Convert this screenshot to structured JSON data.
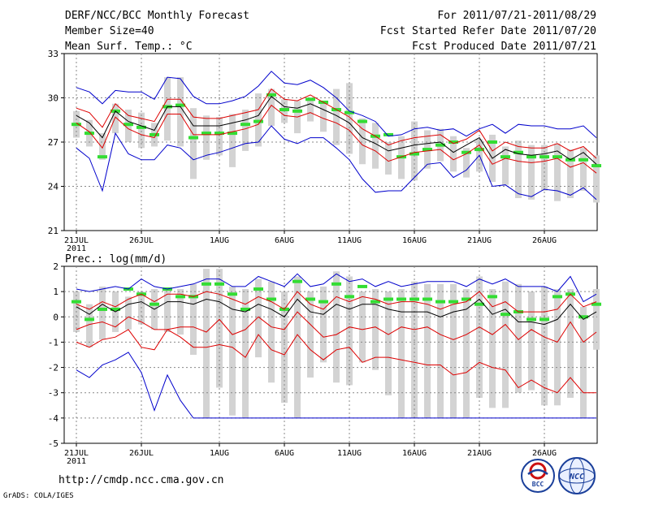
{
  "header": {
    "left": [
      "DERF/NCC/BCC Monthly Forecast",
      "Member Size=40",
      "Mean Surf. Temp.: °C"
    ],
    "right": [
      "For 2011/07/21-2011/08/29",
      "Fcst Started Refer Date 2011/07/20",
      "Fcst Produced Date 2011/07/21"
    ]
  },
  "footer": {
    "url": "http://cmdp.ncc.cma.gov.cn",
    "credit": "GrADS: COLA/IGES",
    "logo_left_text": "BCC",
    "logo_right_text": "NCC"
  },
  "colors": {
    "box": "#d3d3d3",
    "median": "#33dd33",
    "mean": "#000000",
    "spread": "#dd0000",
    "extreme": "#0000cc",
    "grid": "#888888"
  },
  "chart_data": [
    {
      "type": "line",
      "title": "Mean Surf. Temp.: °C",
      "x_tick_labels": [
        "21JUL",
        "26JUL",
        "1AUG",
        "6AUG",
        "11AUG",
        "16AUG",
        "21AUG",
        "26AUG"
      ],
      "x_year_label": "2011",
      "x_tick_days": [
        0,
        5,
        11,
        16,
        21,
        26,
        31,
        36
      ],
      "ylim": [
        21,
        33
      ],
      "y_ticks": [
        21,
        24,
        27,
        30,
        33
      ],
      "series": [
        {
          "name": "max",
          "values": [
            30.7,
            30.4,
            29.6,
            30.5,
            30.4,
            30.4,
            29.9,
            31.4,
            31.3,
            30.1,
            29.6,
            29.6,
            29.8,
            30.1,
            30.8,
            31.8,
            31.0,
            30.9,
            31.2,
            30.7,
            30.0,
            29.1,
            28.8,
            28.4,
            27.4,
            27.5,
            27.9,
            28.0,
            27.8,
            27.9,
            27.4,
            27.9,
            28.2,
            27.6,
            28.2,
            28.1,
            28.1,
            27.9,
            27.9,
            28.1,
            27.3
          ]
        },
        {
          "name": "upper",
          "values": [
            29.3,
            29.0,
            28.0,
            29.6,
            28.8,
            28.6,
            28.4,
            29.9,
            29.9,
            28.7,
            28.6,
            28.6,
            28.8,
            29.0,
            29.2,
            30.6,
            29.9,
            29.8,
            30.2,
            29.7,
            29.2,
            28.7,
            27.9,
            27.4,
            26.8,
            27.1,
            27.3,
            27.4,
            27.5,
            26.9,
            27.2,
            27.8,
            26.4,
            27.0,
            26.7,
            26.6,
            26.6,
            26.9,
            26.4,
            26.7,
            25.9
          ]
        },
        {
          "name": "mean",
          "values": [
            28.8,
            28.3,
            27.3,
            29.1,
            28.4,
            28.1,
            27.8,
            29.4,
            29.4,
            28.1,
            28.1,
            28.1,
            28.3,
            28.5,
            28.8,
            30.1,
            29.4,
            29.3,
            29.6,
            29.2,
            28.8,
            28.3,
            27.3,
            26.9,
            26.4,
            26.6,
            26.8,
            26.9,
            27.0,
            26.3,
            26.8,
            27.3,
            25.9,
            26.5,
            26.2,
            26.1,
            26.2,
            26.4,
            25.8,
            26.3,
            25.5
          ]
        },
        {
          "name": "lower",
          "values": [
            28.3,
            27.7,
            26.6,
            28.7,
            27.9,
            27.5,
            27.3,
            28.9,
            28.9,
            27.5,
            27.5,
            27.5,
            27.7,
            27.9,
            28.2,
            29.5,
            28.8,
            28.7,
            29.0,
            28.6,
            28.3,
            27.8,
            26.8,
            26.4,
            25.7,
            26.0,
            26.3,
            26.4,
            26.5,
            25.8,
            26.2,
            26.8,
            25.5,
            25.9,
            25.7,
            25.6,
            25.7,
            25.9,
            25.3,
            25.6,
            24.9
          ]
        },
        {
          "name": "min",
          "values": [
            26.6,
            25.9,
            23.7,
            27.6,
            26.2,
            25.8,
            25.8,
            26.8,
            26.6,
            25.8,
            26.1,
            26.3,
            26.6,
            26.9,
            27.0,
            28.1,
            27.2,
            26.9,
            27.3,
            27.3,
            26.6,
            25.8,
            24.5,
            23.6,
            23.7,
            23.7,
            24.6,
            25.5,
            25.6,
            24.6,
            25.1,
            26.1,
            24.0,
            24.1,
            23.5,
            23.3,
            23.8,
            23.7,
            23.4,
            23.9,
            23.1
          ]
        },
        {
          "name": "median",
          "values": [
            28.2,
            27.6,
            26.0,
            29.1,
            28.2,
            28.0,
            27.5,
            29.4,
            29.5,
            27.3,
            27.6,
            27.6,
            27.6,
            28.2,
            28.4,
            30.2,
            29.2,
            29.1,
            29.9,
            29.7,
            29.2,
            29.0,
            28.4,
            27.4,
            27.5,
            26.0,
            26.2,
            26.5,
            26.8,
            27.0,
            26.3,
            26.5,
            27.0,
            26.0,
            26.3,
            26.0,
            26.0,
            26.0,
            25.8,
            25.8,
            25.4
          ]
        },
        {
          "name": "box_top",
          "values": [
            29.1,
            28.5,
            27.6,
            29.6,
            29.2,
            29.0,
            28.3,
            31.4,
            31.4,
            29.3,
            28.8,
            28.7,
            28.9,
            29.2,
            30.3,
            30.6,
            29.9,
            29.8,
            30.0,
            29.8,
            30.6,
            31.0,
            28.6,
            28.3,
            27.0,
            27.4,
            28.4,
            27.8,
            27.9,
            27.4,
            26.6,
            27.2,
            27.5,
            26.7,
            27.1,
            26.8,
            26.8,
            26.9,
            26.5,
            26.6,
            26.1
          ]
        },
        {
          "name": "box_bottom",
          "values": [
            27.3,
            26.7,
            25.8,
            27.6,
            27.0,
            26.6,
            26.7,
            27.1,
            26.7,
            24.5,
            25.8,
            26.1,
            25.3,
            26.4,
            26.7,
            28.1,
            28.3,
            27.6,
            28.4,
            27.7,
            26.8,
            26.2,
            25.5,
            25.2,
            24.8,
            24.5,
            24.4,
            25.2,
            25.7,
            25.0,
            24.6,
            25.0,
            24.3,
            24.1,
            23.2,
            23.1,
            23.7,
            23.0,
            23.2,
            23.7,
            22.9
          ]
        }
      ]
    },
    {
      "type": "line",
      "title": "Prec.: log(mm/d)",
      "x_tick_labels": [
        "21JUL",
        "26JUL",
        "1AUG",
        "6AUG",
        "11AUG",
        "16AUG",
        "21AUG",
        "26AUG"
      ],
      "x_year_label": "2011",
      "x_tick_days": [
        0,
        5,
        11,
        16,
        21,
        26,
        31,
        36
      ],
      "ylim": [
        -5,
        2
      ],
      "y_ticks": [
        -5,
        -4,
        -3,
        -2,
        -1,
        0,
        1,
        2
      ],
      "series": [
        {
          "name": "max",
          "values": [
            1.1,
            1.0,
            1.1,
            1.2,
            1.1,
            1.5,
            1.2,
            1.1,
            1.2,
            1.3,
            1.5,
            1.5,
            1.2,
            1.2,
            1.6,
            1.4,
            1.2,
            1.7,
            1.2,
            1.3,
            1.7,
            1.4,
            1.5,
            1.2,
            1.4,
            1.2,
            1.3,
            1.4,
            1.4,
            1.4,
            1.2,
            1.5,
            1.3,
            1.5,
            1.2,
            1.2,
            1.2,
            1.0,
            1.6,
            0.6,
            0.9
          ]
        },
        {
          "name": "upper",
          "values": [
            0.5,
            0.3,
            0.6,
            0.4,
            0.7,
            0.9,
            0.6,
            0.9,
            0.9,
            0.8,
            1.0,
            0.9,
            0.7,
            0.5,
            0.8,
            0.6,
            0.3,
            1.0,
            0.5,
            0.3,
            0.8,
            0.6,
            0.8,
            0.7,
            0.5,
            0.6,
            0.6,
            0.5,
            0.3,
            0.5,
            0.6,
            1.0,
            0.4,
            0.6,
            0.2,
            0.2,
            0.2,
            0.3,
            0.9,
            0.4,
            0.6
          ]
        },
        {
          "name": "mean",
          "values": [
            0.4,
            0.1,
            0.5,
            0.2,
            0.5,
            0.6,
            0.3,
            0.6,
            0.6,
            0.5,
            0.7,
            0.6,
            0.3,
            0.2,
            0.5,
            0.3,
            0.0,
            0.7,
            0.2,
            0.1,
            0.5,
            0.3,
            0.5,
            0.5,
            0.3,
            0.2,
            0.2,
            0.2,
            0.0,
            0.2,
            0.3,
            0.7,
            0.1,
            0.3,
            -0.2,
            -0.2,
            -0.3,
            -0.1,
            0.5,
            -0.1,
            0.2
          ]
        },
        {
          "name": "lower",
          "values": [
            -0.5,
            -0.3,
            -0.2,
            -0.4,
            0.0,
            -0.2,
            -0.5,
            -0.5,
            -0.4,
            -0.4,
            -0.6,
            -0.1,
            -0.7,
            -0.5,
            0.0,
            -0.4,
            -0.5,
            0.2,
            -0.3,
            -0.8,
            -0.7,
            -0.4,
            -0.5,
            -0.4,
            -0.7,
            -0.4,
            -0.5,
            -0.4,
            -0.7,
            -0.9,
            -0.7,
            -0.4,
            -0.7,
            -0.3,
            -0.9,
            -0.5,
            -0.8,
            -1.0,
            -0.2,
            -1.0,
            -0.6
          ]
        },
        {
          "name": "min",
          "values": [
            -2.1,
            -2.4,
            -1.9,
            -1.7,
            -1.4,
            -2.2,
            -3.7,
            -2.3,
            -3.3,
            -4.0,
            -4.0,
            -4.0,
            -4.0,
            -4.0,
            -4.0,
            -4.0,
            -4.0,
            -4.0,
            -4.0,
            -4.0,
            -4.0,
            -4.0,
            -4.0,
            -4.0,
            -4.0,
            -4.0,
            -4.0,
            -4.0,
            -4.0,
            -4.0,
            -4.0,
            -4.0,
            -4.0,
            -4.0,
            -4.0,
            -4.0,
            -4.0,
            -4.0,
            -4.0,
            -4.0,
            -4.0
          ]
        },
        {
          "name": "lower_extreme",
          "values": [
            -1.0,
            -1.2,
            -0.9,
            -0.8,
            -0.5,
            -1.2,
            -1.3,
            -0.5,
            -0.8,
            -1.2,
            -1.2,
            -1.1,
            -1.2,
            -1.6,
            -0.7,
            -1.3,
            -1.5,
            -0.7,
            -1.3,
            -1.7,
            -1.3,
            -1.2,
            -1.8,
            -1.6,
            -1.6,
            -1.7,
            -1.8,
            -1.9,
            -1.9,
            -2.3,
            -2.2,
            -1.8,
            -2.0,
            -2.1,
            -2.8,
            -2.5,
            -2.8,
            -3.0,
            -2.4,
            -3.0,
            -3.0
          ]
        },
        {
          "name": "median",
          "values": [
            0.6,
            -0.1,
            0.3,
            0.3,
            1.1,
            0.9,
            0.5,
            1.1,
            0.8,
            0.8,
            1.3,
            1.3,
            0.9,
            0.3,
            1.1,
            0.7,
            0.3,
            1.4,
            0.7,
            0.6,
            1.3,
            0.8,
            1.2,
            0.6,
            0.7,
            0.7,
            0.7,
            0.7,
            0.6,
            0.6,
            0.7,
            0.5,
            0.8,
            0.1,
            0.2,
            -0.1,
            -0.1,
            0.8,
            0.9,
            0.0,
            0.5
          ]
        },
        {
          "name": "box_top",
          "values": [
            1.0,
            0.5,
            1.2,
            1.0,
            0.8,
            1.0,
            1.1,
            1.1,
            1.1,
            1.3,
            1.9,
            1.9,
            1.2,
            1.1,
            1.5,
            1.4,
            1.0,
            1.6,
            1.0,
            1.2,
            1.8,
            1.6,
            1.0,
            1.1,
            1.0,
            1.1,
            1.4,
            1.3,
            1.3,
            1.3,
            1.1,
            1.6,
            1.1,
            1.4,
            1.3,
            1.0,
            1.2,
            1.1,
            1.1,
            0.4,
            1.1
          ]
        },
        {
          "name": "box_bottom",
          "values": [
            -0.6,
            -1.2,
            -0.9,
            -0.6,
            -0.5,
            -0.3,
            -0.5,
            -0.6,
            -0.7,
            -1.5,
            -4.0,
            -2.8,
            -3.9,
            -4.0,
            -1.6,
            -2.6,
            -3.4,
            -4.0,
            -2.4,
            -1.8,
            -2.6,
            -2.7,
            -1.8,
            -2.1,
            -3.1,
            -4.0,
            -4.0,
            -4.0,
            -4.0,
            -4.0,
            -4.0,
            -3.2,
            -3.6,
            -3.6,
            -3.0,
            -2.9,
            -3.5,
            -3.5,
            -3.2,
            -4.0,
            -1.3
          ]
        }
      ]
    }
  ]
}
